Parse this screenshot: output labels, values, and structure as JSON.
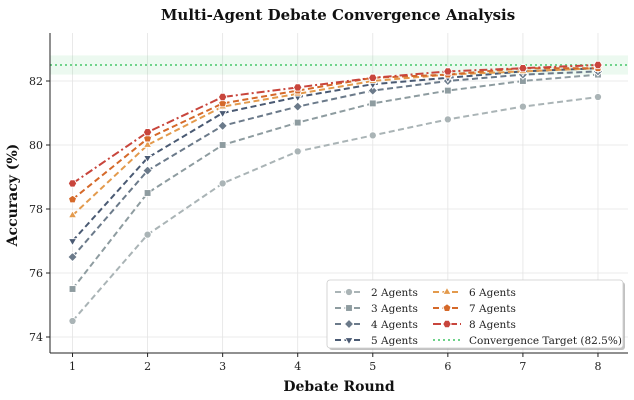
{
  "chart_data": {
    "type": "line",
    "title": "Multi-Agent Debate Convergence Analysis",
    "xlabel": "Debate Round",
    "ylabel": "Accuracy (%)",
    "x": [
      1,
      2,
      3,
      4,
      5,
      6,
      7,
      8
    ],
    "xlim": [
      0.7,
      8.4
    ],
    "ylim": [
      73.5,
      83.5
    ],
    "yticks": [
      74,
      76,
      78,
      80,
      82
    ],
    "grid": true,
    "legend_position": "lower-right",
    "legend_columns": 2,
    "series": [
      {
        "name": "2 Agents",
        "values": [
          74.5,
          77.2,
          78.8,
          79.8,
          80.3,
          80.8,
          81.2,
          81.5
        ],
        "color": "#aab4b6",
        "marker": "circle",
        "dash": "dashed"
      },
      {
        "name": "3 Agents",
        "values": [
          75.5,
          78.5,
          80.0,
          80.7,
          81.3,
          81.7,
          82.0,
          82.2
        ],
        "color": "#8e9ca0",
        "marker": "square",
        "dash": "dashed"
      },
      {
        "name": "4 Agents",
        "values": [
          76.5,
          79.2,
          80.6,
          81.2,
          81.7,
          82.0,
          82.2,
          82.3
        ],
        "color": "#6b7a8a",
        "marker": "diamond",
        "dash": "dashed"
      },
      {
        "name": "5 Agents",
        "values": [
          77.0,
          79.6,
          81.0,
          81.5,
          81.9,
          82.1,
          82.3,
          82.4
        ],
        "color": "#4a5a73",
        "marker": "triangle-down",
        "dash": "dashed"
      },
      {
        "name": "6 Agents",
        "values": [
          77.8,
          80.0,
          81.2,
          81.6,
          82.0,
          82.2,
          82.3,
          82.4
        ],
        "color": "#e39a4c",
        "marker": "triangle-up",
        "dash": "dashed"
      },
      {
        "name": "7 Agents",
        "values": [
          78.3,
          80.2,
          81.3,
          81.7,
          82.1,
          82.2,
          82.4,
          82.4
        ],
        "color": "#d5692a",
        "marker": "pentagon",
        "dash": "dashed"
      },
      {
        "name": "8 Agents",
        "values": [
          78.8,
          80.4,
          81.5,
          81.8,
          82.1,
          82.3,
          82.4,
          82.5
        ],
        "color": "#c8453c",
        "marker": "hexagon",
        "dash": "dashdot"
      }
    ],
    "reference_line": {
      "name": "Convergence Target (82.5%)",
      "value": 82.5,
      "color": "#6fd38a"
    }
  }
}
